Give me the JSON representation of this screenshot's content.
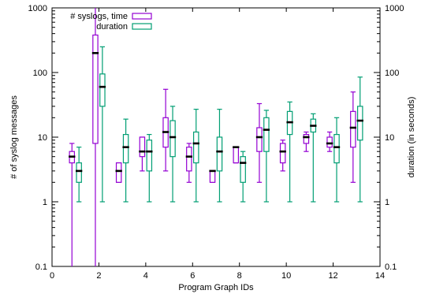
{
  "chart_data": {
    "type": "boxplot",
    "xlabel": "Program Graph IDs",
    "ylabel_left": "# of syslog messages",
    "ylabel_right": "duration (in seconds)",
    "x_range": [
      0,
      14
    ],
    "y_range": [
      0.1,
      1000
    ],
    "y_scale": "log",
    "x_ticks": [
      0,
      2,
      4,
      6,
      8,
      10,
      12,
      14
    ],
    "y_ticks": [
      0.1,
      1,
      10,
      100,
      1000
    ],
    "x_tick_labels": [
      "0",
      "2",
      "4",
      "6",
      "8",
      "10",
      "12",
      "14"
    ],
    "y_tick_labels": [
      "0.1",
      "1",
      "10",
      "100",
      "1000"
    ],
    "legend_position": "top-left",
    "colors": {
      "syslogs": "#9400d3",
      "duration": "#009e73",
      "median": "#000000"
    },
    "series": [
      {
        "name": "# syslogs, time",
        "boxes": [
          {
            "x": 0.85,
            "min": 0.1,
            "q1": 4,
            "median": 5,
            "q3": 6,
            "max": 8
          },
          {
            "x": 1.85,
            "min": 0.1,
            "q1": 8,
            "median": 200,
            "q3": 380,
            "max": 1000
          },
          {
            "x": 2.85,
            "min": 2,
            "q1": 2,
            "median": 3,
            "q3": 4,
            "max": 4
          },
          {
            "x": 3.85,
            "min": 3,
            "q1": 5,
            "median": 6,
            "q3": 10,
            "max": 10
          },
          {
            "x": 4.85,
            "min": 3,
            "q1": 7,
            "median": 12,
            "q3": 20,
            "max": 55
          },
          {
            "x": 5.85,
            "min": 2,
            "q1": 3,
            "median": 5,
            "q3": 7,
            "max": 8
          },
          {
            "x": 6.85,
            "min": 2,
            "q1": 2,
            "median": 3,
            "q3": 3,
            "max": 3
          },
          {
            "x": 7.85,
            "min": 4,
            "q1": 4,
            "median": 7,
            "q3": 7,
            "max": 7
          },
          {
            "x": 8.85,
            "min": 2,
            "q1": 6,
            "median": 10,
            "q3": 14,
            "max": 33
          },
          {
            "x": 9.85,
            "min": 3,
            "q1": 4,
            "median": 6,
            "q3": 8,
            "max": 9
          },
          {
            "x": 10.85,
            "min": 6,
            "q1": 8,
            "median": 10,
            "q3": 11,
            "max": 12
          },
          {
            "x": 11.85,
            "min": 6,
            "q1": 7,
            "median": 8,
            "q3": 10,
            "max": 12
          },
          {
            "x": 12.85,
            "min": 2,
            "q1": 7,
            "median": 14,
            "q3": 25,
            "max": 50
          }
        ]
      },
      {
        "name": "duration",
        "boxes": [
          {
            "x": 1.15,
            "min": 1,
            "q1": 2,
            "median": 3,
            "q3": 4,
            "max": 7
          },
          {
            "x": 2.15,
            "min": 1,
            "q1": 30,
            "median": 60,
            "q3": 95,
            "max": 250
          },
          {
            "x": 3.15,
            "min": 1,
            "q1": 4,
            "median": 7,
            "q3": 11,
            "max": 19
          },
          {
            "x": 4.15,
            "min": 1,
            "q1": 3,
            "median": 6,
            "q3": 9,
            "max": 11
          },
          {
            "x": 5.15,
            "min": 1,
            "q1": 5,
            "median": 10,
            "q3": 18,
            "max": 30
          },
          {
            "x": 6.15,
            "min": 1,
            "q1": 4,
            "median": 8,
            "q3": 12,
            "max": 27
          },
          {
            "x": 7.15,
            "min": 1,
            "q1": 3,
            "median": 6,
            "q3": 10,
            "max": 27
          },
          {
            "x": 8.15,
            "min": 1,
            "q1": 2,
            "median": 4,
            "q3": 5,
            "max": 6
          },
          {
            "x": 9.15,
            "min": 1,
            "q1": 6,
            "median": 13,
            "q3": 20,
            "max": 26
          },
          {
            "x": 10.15,
            "min": 1,
            "q1": 11,
            "median": 17,
            "q3": 25,
            "max": 35
          },
          {
            "x": 11.15,
            "min": 1,
            "q1": 12,
            "median": 15,
            "q3": 19,
            "max": 23
          },
          {
            "x": 12.15,
            "min": 1,
            "q1": 4,
            "median": 7,
            "q3": 11,
            "max": 20
          },
          {
            "x": 13.15,
            "min": 1,
            "q1": 9,
            "median": 18,
            "q3": 30,
            "max": 85
          }
        ]
      }
    ]
  }
}
